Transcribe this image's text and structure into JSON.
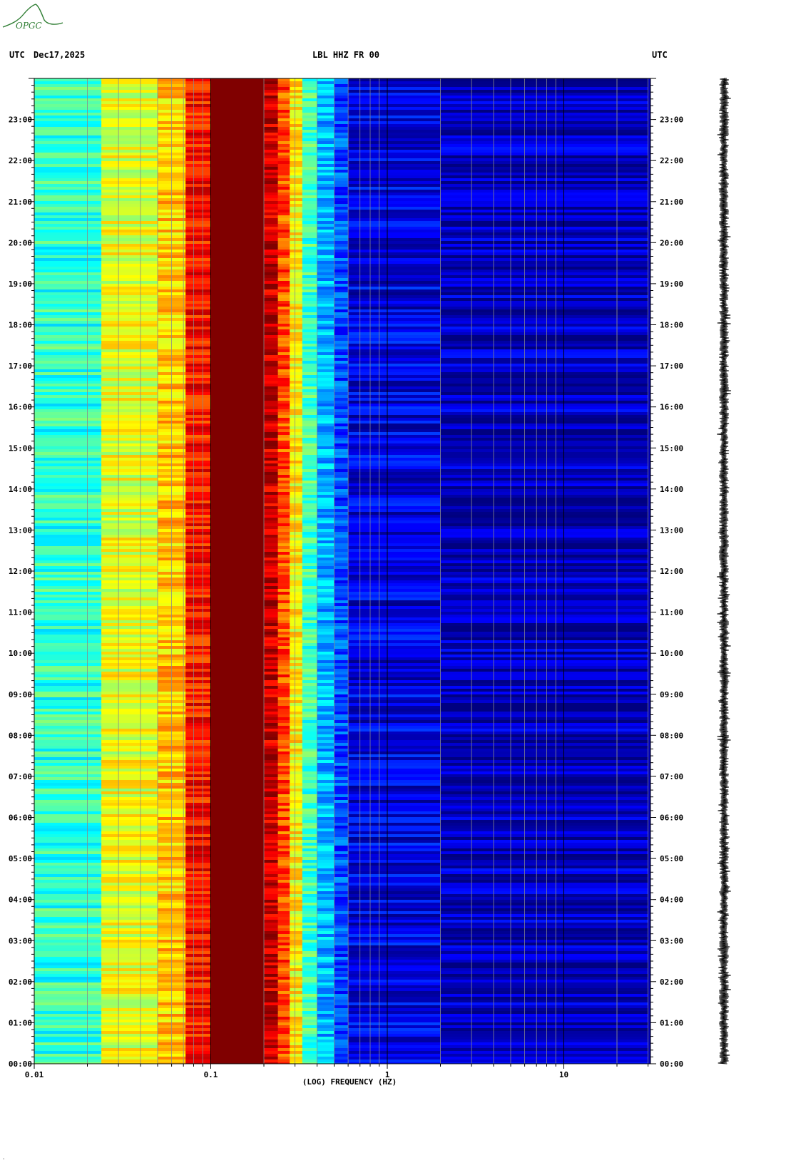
{
  "header": {
    "left_tz": "UTC",
    "date": "Dec17,2025",
    "station": "LBL HHZ FR 00",
    "right_tz": "UTC"
  },
  "logo": {
    "text": "OPGC",
    "icon": "opgc-volcano-logo",
    "color": "#2e7d32"
  },
  "footer_mark": ".",
  "chart_data": {
    "type": "heatmap",
    "title": "LBL HHZ FR 00",
    "xlabel": "(LOG) FREQUENCY (HZ)",
    "ylabel": "",
    "x_scale": "log",
    "xlim": [
      0.01,
      30
    ],
    "x_ticks": [
      0.01,
      0.1,
      1,
      10
    ],
    "x_tick_labels": [
      "0.01",
      "0.1",
      "1",
      "10"
    ],
    "y_ticks_hours": [
      0,
      1,
      2,
      3,
      4,
      5,
      6,
      7,
      8,
      9,
      10,
      11,
      12,
      13,
      14,
      15,
      16,
      17,
      18,
      19,
      20,
      21,
      22,
      23
    ],
    "y_tick_labels": [
      "00:00",
      "01:00",
      "02:00",
      "03:00",
      "04:00",
      "05:00",
      "06:00",
      "07:00",
      "08:00",
      "09:00",
      "10:00",
      "11:00",
      "12:00",
      "13:00",
      "14:00",
      "15:00",
      "16:00",
      "17:00",
      "18:00",
      "19:00",
      "20:00",
      "21:00",
      "22:00",
      "23:00"
    ],
    "ylim_hours": [
      0,
      24
    ],
    "colormap": "jet",
    "colors": {
      "low": "#00008f",
      "mid_low": "#0080ff",
      "cyan": "#00ffff",
      "mid": "#ffff00",
      "mid_high": "#ff8000",
      "high": "#800000"
    },
    "bands": [
      {
        "from": 0.01,
        "to": 0.024,
        "level": 0.42
      },
      {
        "from": 0.024,
        "to": 0.05,
        "level": 0.6
      },
      {
        "from": 0.05,
        "to": 0.072,
        "level": 0.68
      },
      {
        "from": 0.072,
        "to": 0.1,
        "level": 0.86
      },
      {
        "from": 0.1,
        "to": 0.2,
        "level": 1.0
      },
      {
        "from": 0.2,
        "to": 0.24,
        "level": 0.93
      },
      {
        "from": 0.24,
        "to": 0.28,
        "level": 0.8
      },
      {
        "from": 0.28,
        "to": 0.33,
        "level": 0.63
      },
      {
        "from": 0.33,
        "to": 0.4,
        "level": 0.44
      },
      {
        "from": 0.4,
        "to": 0.5,
        "level": 0.3
      },
      {
        "from": 0.5,
        "to": 0.6,
        "level": 0.2
      },
      {
        "from": 0.6,
        "to": 2.0,
        "level": 0.1
      },
      {
        "from": 2.0,
        "to": 30,
        "level": 0.06
      }
    ],
    "trace": {
      "color": "#000000"
    }
  }
}
